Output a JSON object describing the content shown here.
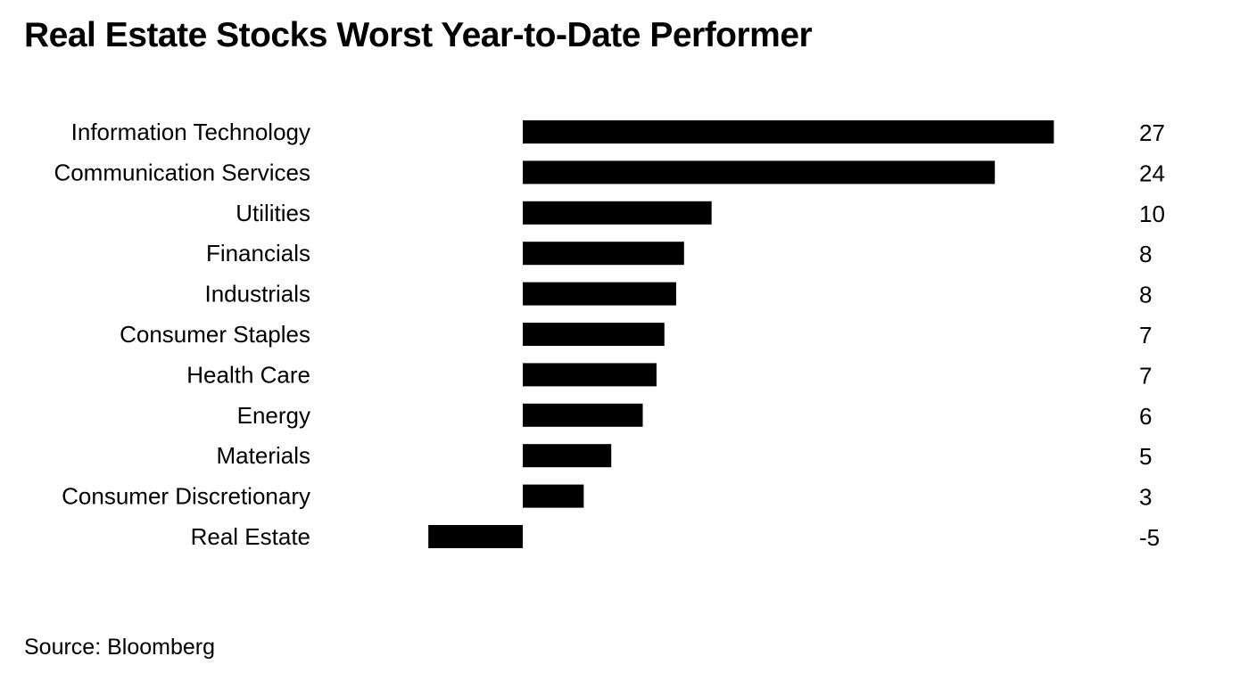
{
  "title": "Real Estate Stocks Worst Year-to-Date Performer",
  "source": "Source: Bloomberg",
  "colors": {
    "bar": "#000000",
    "text": "#000000",
    "background": "#ffffff"
  },
  "chart_data": {
    "type": "bar",
    "orientation": "horizontal",
    "title": "Real Estate Stocks Worst Year-to-Date Performer",
    "categories": [
      "Information Technology",
      "Communication Services",
      "Utilities",
      "Financials",
      "Industrials",
      "Consumer Staples",
      "Health Care",
      "Energy",
      "Materials",
      "Consumer Discretionary",
      "Real Estate"
    ],
    "values": [
      27,
      24,
      9.6,
      8.2,
      7.8,
      7.2,
      6.8,
      6.1,
      4.5,
      3.1,
      -4.8
    ],
    "value_labels": [
      "27",
      "24",
      "10",
      "8",
      "8",
      "7",
      "7",
      "6",
      "5",
      "3",
      "-5"
    ],
    "xlim": [
      -5,
      27
    ],
    "grid": false,
    "legend": "none"
  }
}
